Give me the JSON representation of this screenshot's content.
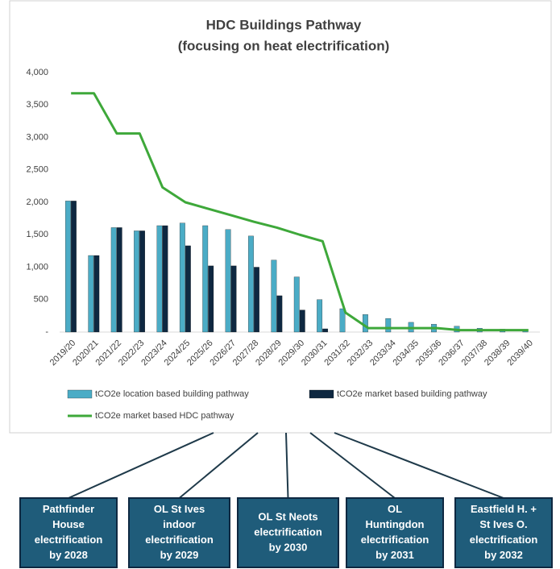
{
  "chart_data": {
    "type": "bar_line",
    "title": "HDC Buildings Pathway",
    "subtitle": "(focusing on heat electrification)",
    "categories": [
      "2019/20",
      "2020/21",
      "2021/22",
      "2022/23",
      "2023/24",
      "2024/25",
      "2025/26",
      "2026/27",
      "2027/28",
      "2028/29",
      "2029/30",
      "2030/31",
      "2031/32",
      "2032/33",
      "2033/34",
      "2034/35",
      "2035/36",
      "2036/37",
      "2037/38",
      "2038/39",
      "2039/40"
    ],
    "series": [
      {
        "name": "tCO2e location based building pathway",
        "kind": "bar",
        "color": "#4bacc6",
        "values": [
          2020,
          1180,
          1610,
          1560,
          1640,
          1680,
          1640,
          1580,
          1480,
          1110,
          850,
          500,
          360,
          270,
          210,
          150,
          120,
          90,
          60,
          45,
          30
        ]
      },
      {
        "name": "tCO2e market based building pathway",
        "kind": "bar",
        "color": "#0e2841",
        "values": [
          2020,
          1180,
          1610,
          1560,
          1640,
          1330,
          1020,
          1020,
          1000,
          560,
          340,
          50,
          null,
          null,
          null,
          null,
          null,
          null,
          null,
          null,
          null
        ]
      },
      {
        "name": "tCO2e market based HDC pathway",
        "kind": "line",
        "color": "#3ea83a",
        "values": [
          3680,
          3680,
          3060,
          3060,
          2230,
          2000,
          1900,
          1800,
          1700,
          1610,
          1500,
          1400,
          300,
          60,
          60,
          60,
          60,
          30,
          30,
          30,
          30
        ]
      }
    ],
    "ylim": [
      0,
      4000
    ],
    "yticks": [
      {
        "value": 0,
        "label": "-"
      },
      500,
      {
        "value": 1000,
        "label": "1,000"
      },
      {
        "value": 1500,
        "label": "1,500"
      },
      {
        "value": 2000,
        "label": "2,000"
      },
      {
        "value": 2500,
        "label": "2,500"
      },
      {
        "value": 3000,
        "label": "3,000"
      },
      {
        "value": 3500,
        "label": "3,500"
      },
      {
        "value": 4000,
        "label": "4,000"
      }
    ],
    "grid": false,
    "annotations": [
      {
        "lines": [
          "Pathfinder",
          "House",
          "electrification",
          "by 2028"
        ]
      },
      {
        "lines": [
          "OL St Ives",
          "indoor",
          "electrification",
          "by 2029"
        ]
      },
      {
        "lines": [
          "OL St Neots",
          "electrification",
          "by 2030"
        ]
      },
      {
        "lines": [
          "OL",
          "Huntingdon",
          "electrification",
          "by 2031"
        ]
      },
      {
        "lines": [
          "Eastfield H. +",
          "St Ives O.",
          "electrification",
          "by 2032"
        ]
      }
    ]
  }
}
